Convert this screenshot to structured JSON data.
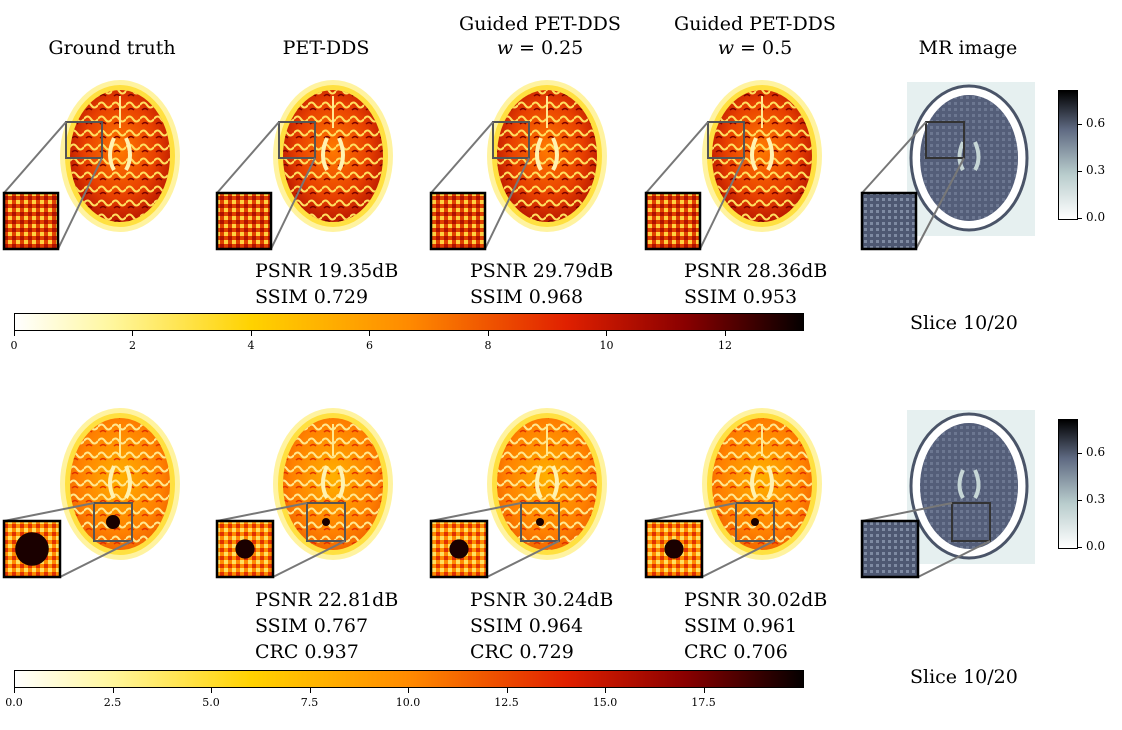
{
  "columns": [
    {
      "title_line1": "Ground truth",
      "title_line2": ""
    },
    {
      "title_line1": "PET-DDS",
      "title_line2": ""
    },
    {
      "title_line1": "Guided PET-DDS",
      "title_line2_var": "w",
      "title_line2_val": " = 0.25"
    },
    {
      "title_line1": "Guided PET-DDS",
      "title_line2_var": "w",
      "title_line2_val": " = 0.5"
    },
    {
      "title_line1": "MR image",
      "title_line2": ""
    }
  ],
  "row1": {
    "metrics": [
      {
        "psnr": "PSNR 19.35dB",
        "ssim": "SSIM 0.729"
      },
      {
        "psnr": "PSNR 29.79dB",
        "ssim": "SSIM 0.968"
      },
      {
        "psnr": "PSNR 28.36dB",
        "ssim": "SSIM 0.953"
      }
    ],
    "slice_label": "Slice 10/20",
    "colorbar_ticks": [
      "0",
      "2",
      "4",
      "6",
      "8",
      "10",
      "12"
    ],
    "mr_colorbar_ticks": [
      "0.6",
      "0.3",
      "0.0"
    ]
  },
  "row2": {
    "metrics": [
      {
        "psnr": "PSNR 22.81dB",
        "ssim": "SSIM 0.767",
        "crc": "CRC 0.937"
      },
      {
        "psnr": "PSNR 30.24dB",
        "ssim": "SSIM 0.964",
        "crc": "CRC 0.729"
      },
      {
        "psnr": "PSNR 30.02dB",
        "ssim": "SSIM 0.961",
        "crc": "CRC 0.706"
      }
    ],
    "slice_label": "Slice 10/20",
    "colorbar_ticks": [
      "0.0",
      "2.5",
      "5.0",
      "7.5",
      "10.0",
      "12.5",
      "15.0",
      "17.5"
    ],
    "mr_colorbar_ticks": [
      "0.6",
      "0.3",
      "0.0"
    ]
  },
  "colors": {
    "hot_low": "#ffffe0",
    "hot_mid1": "#ffe000",
    "hot_mid2": "#ff8000",
    "hot_mid3": "#cc1a00",
    "hot_high": "#1a0000",
    "mr_bg": "#e8f2f2",
    "mr_tissue": "#59637a"
  }
}
